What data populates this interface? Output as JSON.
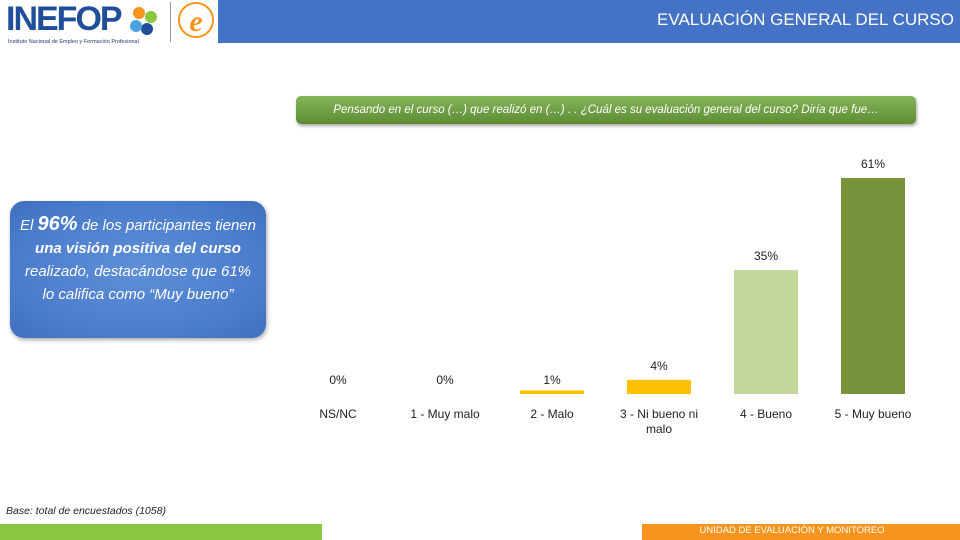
{
  "header": {
    "title": "EVALUACIÓN GENERAL DEL CURSO",
    "logo_text": "INEFOP",
    "logo_subtitle": "Instituto Nacional de Empleo y Formación Profesional"
  },
  "question": "Pensando en el  curso (…) que realizó en (…) . . ¿Cuál es su evaluación general del curso? Diría que fue…",
  "callout": {
    "pre": "El ",
    "pct": "96%",
    "mid1": " de los participantes tienen ",
    "bold1": "una visión positiva del curso",
    "mid2": " realizado, destacándose que 61% lo califica como “Muy bueno”"
  },
  "footer": {
    "base": "Base: total de encuestados (1058)",
    "unit": "UNIDAD DE EVALUACIÓN Y MONITOREO"
  },
  "colors": {
    "header_blue": "#4472c4",
    "bar_yellow": "#ffc000",
    "bar_lightgreen": "#c4d79b",
    "bar_green": "#77933c",
    "footer_green": "#8dc63f",
    "footer_orange": "#f7941d"
  },
  "chart_data": {
    "type": "bar",
    "categories": [
      "NS/NC",
      "1 - Muy malo",
      "2 - Malo",
      "3 - Ni bueno ni malo",
      "4 - Bueno",
      "5 - Muy bueno"
    ],
    "category_lines": [
      [
        "NS/NC"
      ],
      [
        "1 - Muy malo"
      ],
      [
        "2 - Malo"
      ],
      [
        "3 - Ni bueno ni",
        "malo"
      ],
      [
        "4 - Bueno"
      ],
      [
        "5 - Muy bueno"
      ]
    ],
    "values": [
      0,
      0,
      1,
      4,
      35,
      61
    ],
    "labels": [
      "0%",
      "0%",
      "1%",
      "4%",
      "35%",
      "61%"
    ],
    "bar_colors": [
      "#ffc000",
      "#ffc000",
      "#ffc000",
      "#ffc000",
      "#c4d79b",
      "#77933c"
    ],
    "ylim": [
      0,
      61
    ],
    "grid": false,
    "legend": "none"
  }
}
